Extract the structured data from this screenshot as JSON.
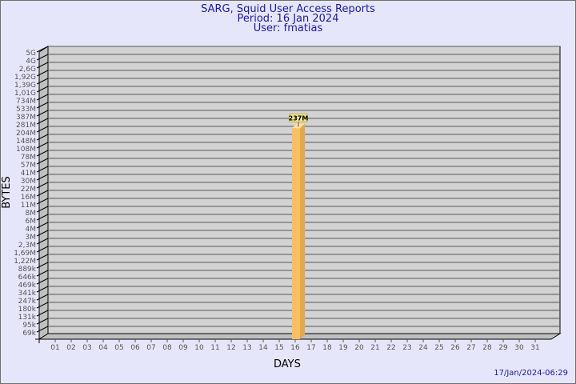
{
  "chart_data": {
    "type": "bar",
    "title": "SARG, Squid User Access Reports",
    "subtitle": [
      "Period: 16 Jan 2024",
      "User: fmatias"
    ],
    "xlabel": "DAYS",
    "ylabel": "BYTES",
    "y_scale": "log",
    "y_tick_labels": [
      "5G",
      "4G",
      "2,6G",
      "1,92G",
      "1,39G",
      "1,01G",
      "734M",
      "533M",
      "387M",
      "281M",
      "204M",
      "148M",
      "108M",
      "78M",
      "57M",
      "41M",
      "30M",
      "22M",
      "16M",
      "11M",
      "8M",
      "6M",
      "4M",
      "3M",
      "2,3M",
      "1,69M",
      "1,22M",
      "889k",
      "646k",
      "469k",
      "341k",
      "247k",
      "180k",
      "131k",
      "95k",
      "69k"
    ],
    "categories": [
      "01",
      "02",
      "03",
      "04",
      "05",
      "06",
      "07",
      "08",
      "09",
      "10",
      "11",
      "12",
      "13",
      "14",
      "15",
      "16",
      "17",
      "18",
      "19",
      "20",
      "21",
      "22",
      "23",
      "24",
      "25",
      "26",
      "27",
      "28",
      "29",
      "30",
      "31"
    ],
    "bars": [
      {
        "day": "16",
        "value_label": "237M"
      }
    ],
    "grid": true,
    "colors": {
      "background": "#e6e6fa",
      "wall": "#d3d3d3",
      "bar": "#f8c060",
      "text": "#1a1aa0"
    }
  },
  "footer": {
    "timestamp": "17/Jan/2024-06:29"
  }
}
